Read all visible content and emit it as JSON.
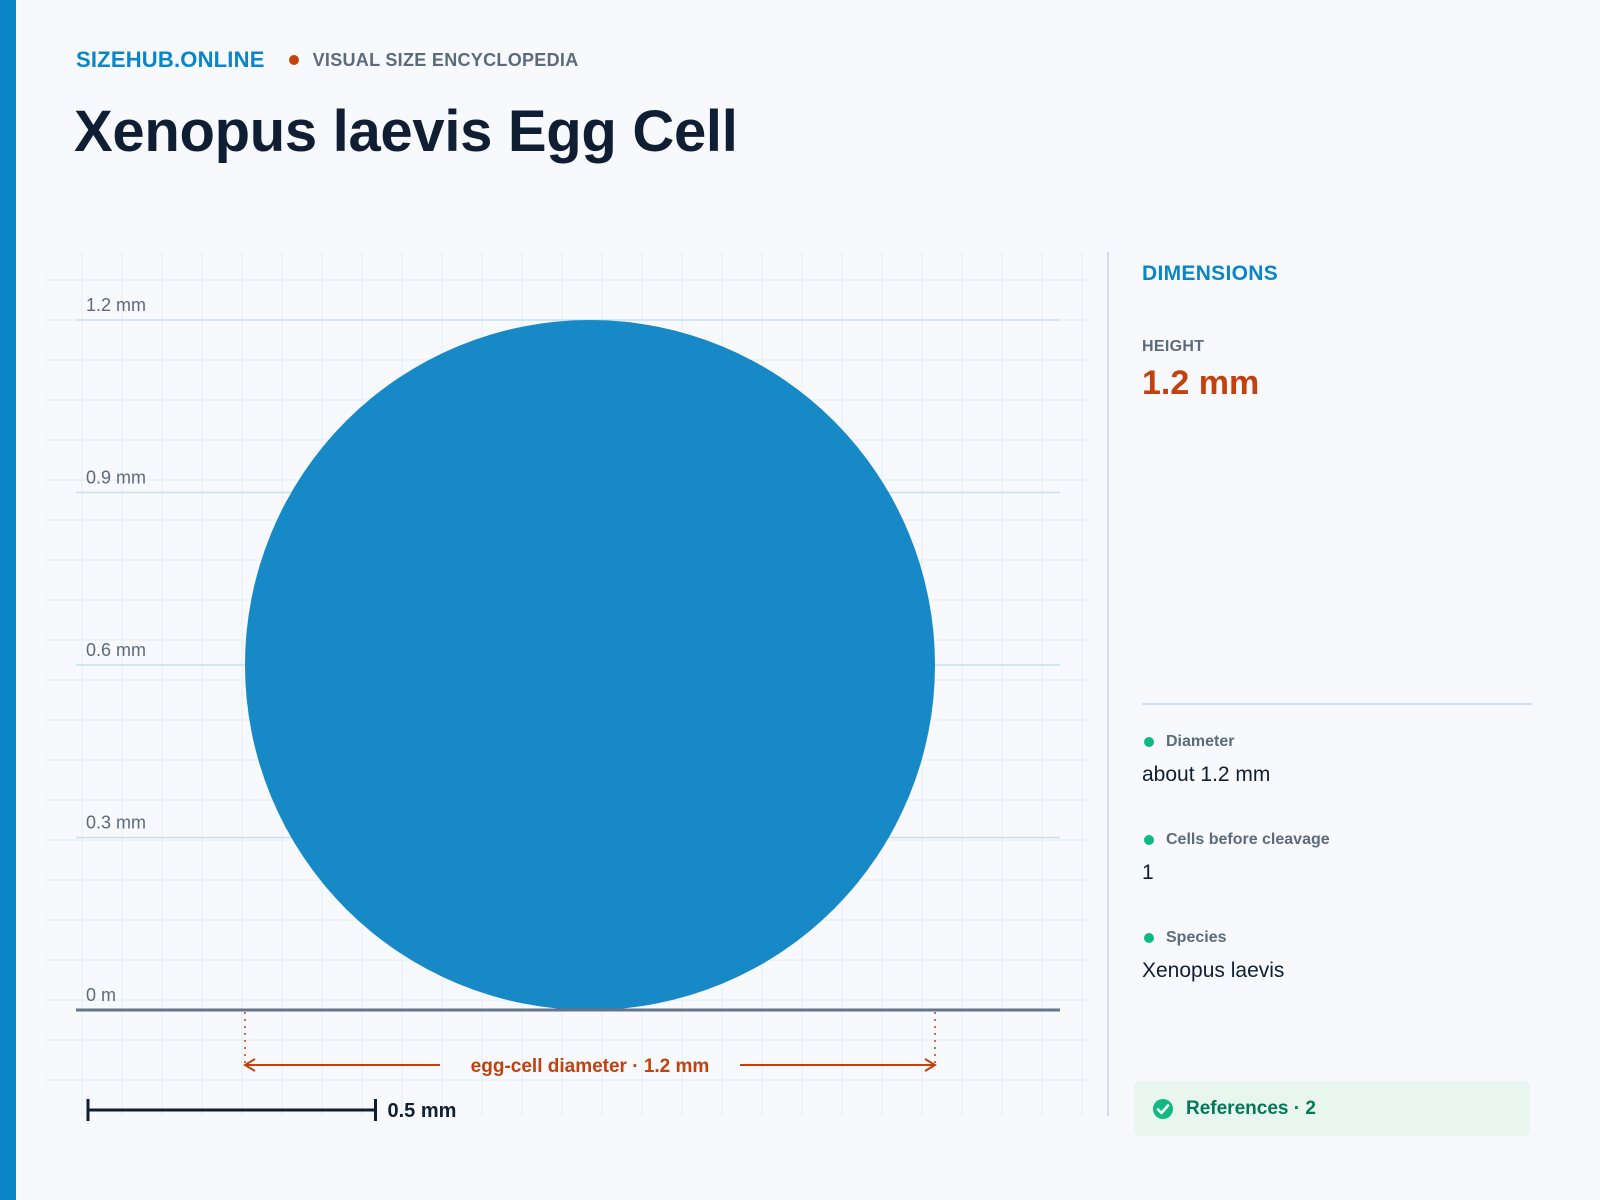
{
  "header": {
    "brand": "SIZEHUB.ONLINE",
    "tagline": "VISUAL SIZE ENCYCLOPEDIA",
    "title": "Xenopus laevis Egg Cell"
  },
  "diagram": {
    "unit": "mm",
    "y_max": 1.2,
    "ticks": [
      {
        "value": 1.2,
        "label": "1.2 mm"
      },
      {
        "value": 0.9,
        "label": "0.9 mm"
      },
      {
        "value": 0.6,
        "label": "0.6 mm"
      },
      {
        "value": 0.3,
        "label": "0.3 mm"
      },
      {
        "value": 0,
        "label": "0 m"
      }
    ],
    "object": {
      "shape": "circle",
      "diameter": 1.2,
      "color": "#1689c6"
    },
    "dimension_label": "egg-cell diameter · 1.2 mm",
    "scale_bar": {
      "value": 0.5,
      "label": "0.5 mm"
    },
    "colors": {
      "accent": "#0a86c8",
      "highlight": "#c2410c",
      "object": "#1689c6",
      "ground": "#64748b"
    }
  },
  "panel": {
    "heading": "DIMENSIONS",
    "metric_label": "HEIGHT",
    "metric_value": "1.2 mm",
    "facts": [
      {
        "label": "Diameter",
        "value": "about 1.2 mm"
      },
      {
        "label": "Cells before cleavage",
        "value": "1"
      },
      {
        "label": "Species",
        "value": "Xenopus laevis"
      }
    ],
    "references": "References · 2",
    "references_icon": "check-circle-icon"
  }
}
